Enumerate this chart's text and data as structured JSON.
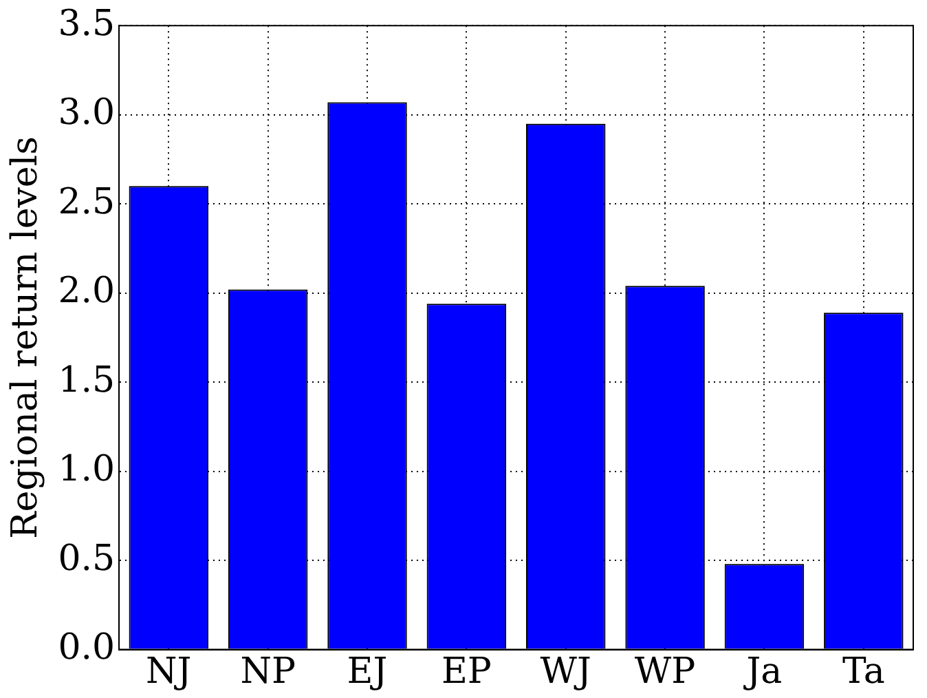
{
  "chart_data": {
    "type": "bar",
    "ylabel": "Regional return levels",
    "categories": [
      "NJ",
      "NP",
      "EJ",
      "EP",
      "WJ",
      "WP",
      "Ja",
      "Ta"
    ],
    "values": [
      2.6,
      2.02,
      3.07,
      1.94,
      2.95,
      2.04,
      0.48,
      1.89
    ],
    "color": "#0000ff",
    "ylim": [
      0,
      3.5
    ],
    "yticks": [
      {
        "value": 0,
        "label": "0.0"
      },
      0.5,
      {
        "value": 1,
        "label": "1.0"
      },
      1.5,
      {
        "value": 2,
        "label": "2.0"
      },
      2.5,
      {
        "value": 3,
        "label": "3.0"
      },
      3.5
    ],
    "grid": true,
    "legend": false
  }
}
